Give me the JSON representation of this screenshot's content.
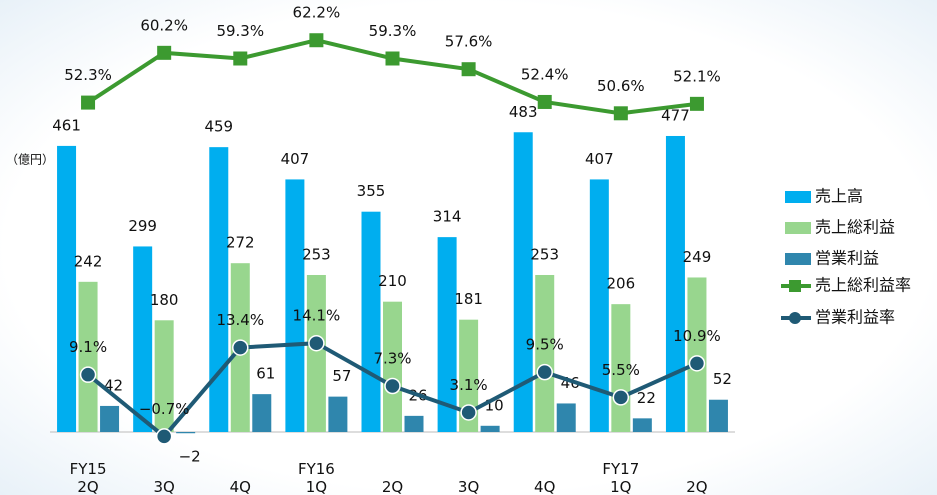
{
  "chart_data": {
    "type": "bar_line",
    "unit_label": "（億円）",
    "categories": [
      "FY15\n2Q",
      "3Q",
      "4Q",
      "FY16\n1Q",
      "2Q",
      "3Q",
      "4Q",
      "FY17\n1Q",
      "2Q"
    ],
    "ylim": [
      0,
      680
    ],
    "y2lim": [
      0,
      67
    ],
    "series": [
      {
        "name": "売上高",
        "type": "bar",
        "color": "#00aeef",
        "values": [
          461,
          299,
          459,
          407,
          355,
          314,
          483,
          407,
          477
        ]
      },
      {
        "name": "売上総利益",
        "type": "bar",
        "color": "#98d68e",
        "values": [
          242,
          180,
          272,
          253,
          210,
          181,
          253,
          206,
          249
        ]
      },
      {
        "name": "営業利益",
        "type": "bar",
        "color": "#2f86ad",
        "values": [
          42,
          -2,
          61,
          57,
          26,
          10,
          46,
          22,
          52
        ],
        "value_labels": [
          "42",
          "−2",
          "61",
          "57",
          "26",
          "10",
          "46",
          "22",
          "52"
        ]
      },
      {
        "name": "売上総利益率",
        "type": "line",
        "axis": "y2",
        "color": "#3c9a30",
        "marker": "square",
        "values": [
          52.3,
          60.2,
          59.3,
          62.2,
          59.3,
          57.6,
          52.4,
          50.6,
          52.1
        ],
        "value_labels": [
          "52.3%",
          "60.2%",
          "59.3%",
          "62.2%",
          "59.3%",
          "57.6%",
          "52.4%",
          "50.6%",
          "52.1%"
        ]
      },
      {
        "name": "営業利益率",
        "type": "line",
        "axis": "y2",
        "color": "#1f5a75",
        "marker": "circle",
        "values": [
          9.1,
          -0.7,
          13.4,
          14.1,
          7.3,
          3.1,
          9.5,
          5.5,
          10.9
        ],
        "value_labels": [
          "9.1%",
          "−0.7%",
          "13.4%",
          "14.1%",
          "7.3%",
          "3.1%",
          "9.5%",
          "5.5%",
          "10.9%"
        ]
      }
    ]
  }
}
